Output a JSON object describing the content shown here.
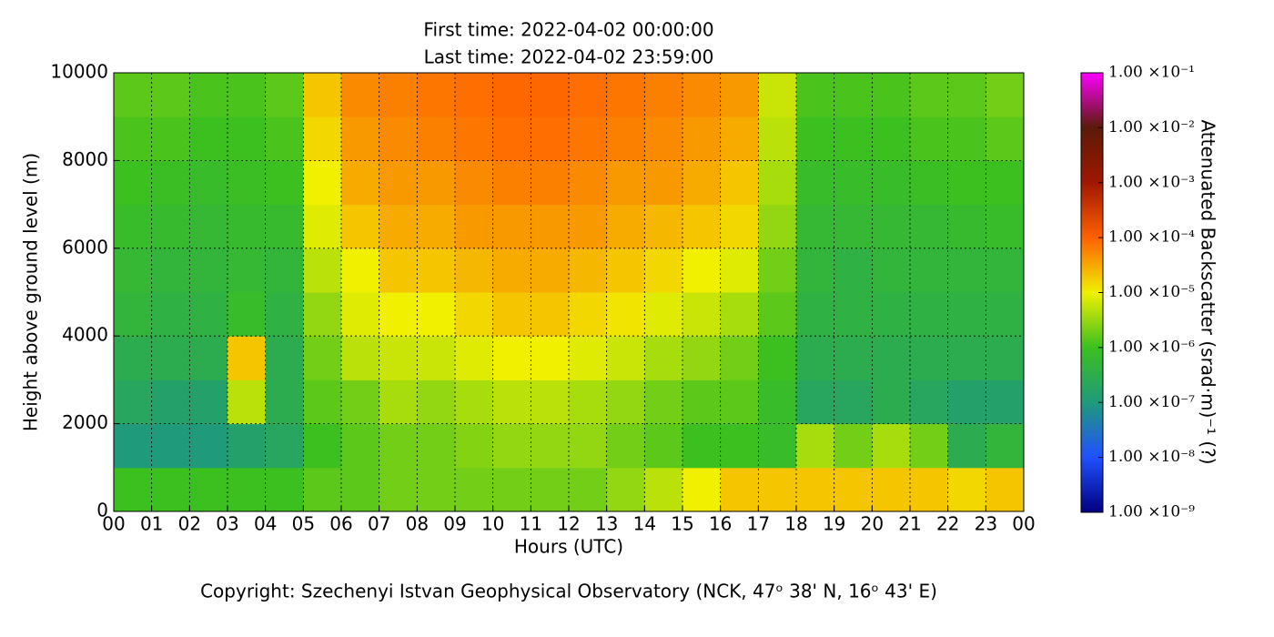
{
  "chart_data": {
    "type": "heatmap",
    "title": [
      "First time: 2022-04-02 00:00:00",
      "Last time: 2022-04-02 23:59:00"
    ],
    "xlabel": "Hours (UTC)",
    "ylabel": "Height above ground level (m)",
    "footer": "Copyright: Szechenyi Istvan Geophysical Observatory (NCK, 47ᵒ  38' N, 16ᵒ  43' E)",
    "xlim": [
      0,
      24
    ],
    "xticks": [
      {
        "value": 0,
        "label": "00"
      },
      {
        "value": 1,
        "label": "01"
      },
      {
        "value": 2,
        "label": "02"
      },
      {
        "value": 3,
        "label": "03"
      },
      {
        "value": 4,
        "label": "04"
      },
      {
        "value": 5,
        "label": "05"
      },
      {
        "value": 6,
        "label": "06"
      },
      {
        "value": 7,
        "label": "07"
      },
      {
        "value": 8,
        "label": "08"
      },
      {
        "value": 9,
        "label": "09"
      },
      {
        "value": 10,
        "label": "10"
      },
      {
        "value": 11,
        "label": "11"
      },
      {
        "value": 12,
        "label": "12"
      },
      {
        "value": 13,
        "label": "13"
      },
      {
        "value": 14,
        "label": "14"
      },
      {
        "value": 15,
        "label": "15"
      },
      {
        "value": 16,
        "label": "16"
      },
      {
        "value": 17,
        "label": "17"
      },
      {
        "value": 18,
        "label": "18"
      },
      {
        "value": 19,
        "label": "19"
      },
      {
        "value": 20,
        "label": "20"
      },
      {
        "value": 21,
        "label": "21"
      },
      {
        "value": 22,
        "label": "22"
      },
      {
        "value": 23,
        "label": "23"
      },
      {
        "value": 24,
        "label": "00"
      }
    ],
    "ylim": [
      0,
      10000
    ],
    "yticks": [
      0,
      2000,
      4000,
      6000,
      8000,
      10000
    ],
    "grid": true,
    "x_bins": [
      0,
      1,
      2,
      3,
      4,
      5,
      6,
      7,
      8,
      9,
      10,
      11,
      12,
      13,
      14,
      15,
      16,
      17,
      18,
      19,
      20,
      21,
      22,
      23,
      24
    ],
    "y_bins": [
      0,
      1000,
      2000,
      3000,
      4000,
      5000,
      6000,
      7000,
      8000,
      9000,
      10000
    ],
    "z": [
      [
        1e-06,
        1e-06,
        1e-06,
        1e-06,
        1e-06,
        1.5e-06,
        1.5e-06,
        2e-06,
        2e-06,
        2e-06,
        2e-06,
        2e-06,
        2e-06,
        3e-06,
        5e-06,
        1e-05,
        2e-05,
        2e-05,
        2e-05,
        2e-05,
        2e-05,
        2e-05,
        1.5e-05,
        2e-05
      ],
      [
        1e-07,
        1e-07,
        1e-07,
        1.5e-07,
        2e-07,
        1e-06,
        1.5e-06,
        2e-06,
        2e-06,
        2.5e-06,
        3e-06,
        3e-06,
        3e-06,
        2e-06,
        1.5e-06,
        1e-06,
        1e-06,
        8e-07,
        4e-06,
        2e-06,
        4e-06,
        2e-06,
        3e-07,
        5e-07
      ],
      [
        2e-07,
        1.5e-07,
        1.5e-07,
        5e-06,
        3e-07,
        1.5e-06,
        2e-06,
        4e-06,
        3e-06,
        4e-06,
        5e-06,
        5e-06,
        4e-06,
        3e-06,
        2e-06,
        1.5e-06,
        1.5e-06,
        8e-07,
        2e-07,
        2e-07,
        3e-07,
        2e-07,
        1.5e-07,
        1.5e-07
      ],
      [
        3e-07,
        3e-07,
        3e-07,
        2e-05,
        3e-07,
        2e-06,
        5e-06,
        6e-06,
        6e-06,
        8e-06,
        1e-05,
        1e-05,
        8e-06,
        6e-06,
        4e-06,
        3e-06,
        2e-06,
        1e-06,
        3e-07,
        3e-07,
        3e-07,
        3e-07,
        3e-07,
        3e-07
      ],
      [
        5e-07,
        4e-07,
        4e-07,
        8e-07,
        4e-07,
        3e-06,
        8e-06,
        1e-05,
        1e-05,
        1.5e-05,
        2e-05,
        2e-05,
        1.5e-05,
        1.2e-05,
        8e-06,
        6e-06,
        4e-06,
        1.5e-06,
        4e-07,
        4e-07,
        4e-07,
        4e-07,
        4e-07,
        4e-07
      ],
      [
        6e-07,
        5e-07,
        5e-07,
        6e-07,
        5e-07,
        5e-06,
        1e-05,
        2e-05,
        2e-05,
        2.5e-05,
        3e-05,
        3e-05,
        2.5e-05,
        2e-05,
        1.5e-05,
        1e-05,
        8e-06,
        2e-06,
        5e-07,
        4e-07,
        5e-07,
        5e-07,
        5e-07,
        5e-07
      ],
      [
        8e-07,
        7e-07,
        6e-07,
        7e-07,
        7e-07,
        8e-06,
        2e-05,
        3e-05,
        3e-05,
        4e-05,
        4e-05,
        4e-05,
        4e-05,
        3e-05,
        2.5e-05,
        2e-05,
        1.5e-05,
        3e-06,
        6e-07,
        6e-07,
        6e-07,
        6e-07,
        7e-07,
        8e-07
      ],
      [
        1e-06,
        9e-07,
        8e-07,
        9e-07,
        1e-06,
        1e-05,
        3e-05,
        4e-05,
        4e-05,
        5e-05,
        6e-05,
        6e-05,
        5e-05,
        4e-05,
        4e-05,
        3e-05,
        2e-05,
        4e-06,
        8e-07,
        8e-07,
        8e-07,
        9e-07,
        1e-06,
        1e-06
      ],
      [
        1.2e-06,
        1.2e-06,
        1e-06,
        1e-06,
        1.2e-06,
        1.5e-05,
        4e-05,
        5e-05,
        6e-05,
        7e-05,
        8e-05,
        8e-05,
        7e-05,
        6e-05,
        5e-05,
        4e-05,
        3e-05,
        5e-06,
        1e-06,
        1e-06,
        1e-06,
        1.2e-06,
        1.2e-06,
        1.5e-06
      ],
      [
        1.5e-06,
        1.5e-06,
        1.2e-06,
        1.2e-06,
        1.5e-06,
        2e-05,
        5e-05,
        6e-05,
        7e-05,
        8e-05,
        9e-05,
        9e-05,
        8e-05,
        7e-05,
        6e-05,
        5e-05,
        4e-05,
        6e-06,
        1.2e-06,
        1.2e-06,
        1.2e-06,
        1.5e-06,
        1.5e-06,
        2e-06
      ]
    ],
    "clim": [
      1e-09,
      0.1
    ],
    "clog": true,
    "colormap": [
      "#00007f",
      "#2050ff",
      "#1f9a7a",
      "#3cc020",
      "#f0f000",
      "#ff6000",
      "#a01800",
      "#5a1a08",
      "#ff00ff"
    ],
    "cticks": [
      {
        "value": 1e-09,
        "label": "1.00 ×10⁻⁹"
      },
      {
        "value": 1e-08,
        "label": "1.00 ×10⁻⁸"
      },
      {
        "value": 1e-07,
        "label": "1.00 ×10⁻⁷"
      },
      {
        "value": 1e-06,
        "label": "1.00 ×10⁻⁶"
      },
      {
        "value": 1e-05,
        "label": "1.00 ×10⁻⁵"
      },
      {
        "value": 0.0001,
        "label": "1.00 ×10⁻⁴"
      },
      {
        "value": 0.001,
        "label": "1.00 ×10⁻³"
      },
      {
        "value": 0.01,
        "label": "1.00 ×10⁻²"
      },
      {
        "value": 0.1,
        "label": "1.00 ×10⁻¹"
      }
    ],
    "colorbar_label": "Attenuated Backscatter (srad·m)⁻¹ (?)"
  }
}
